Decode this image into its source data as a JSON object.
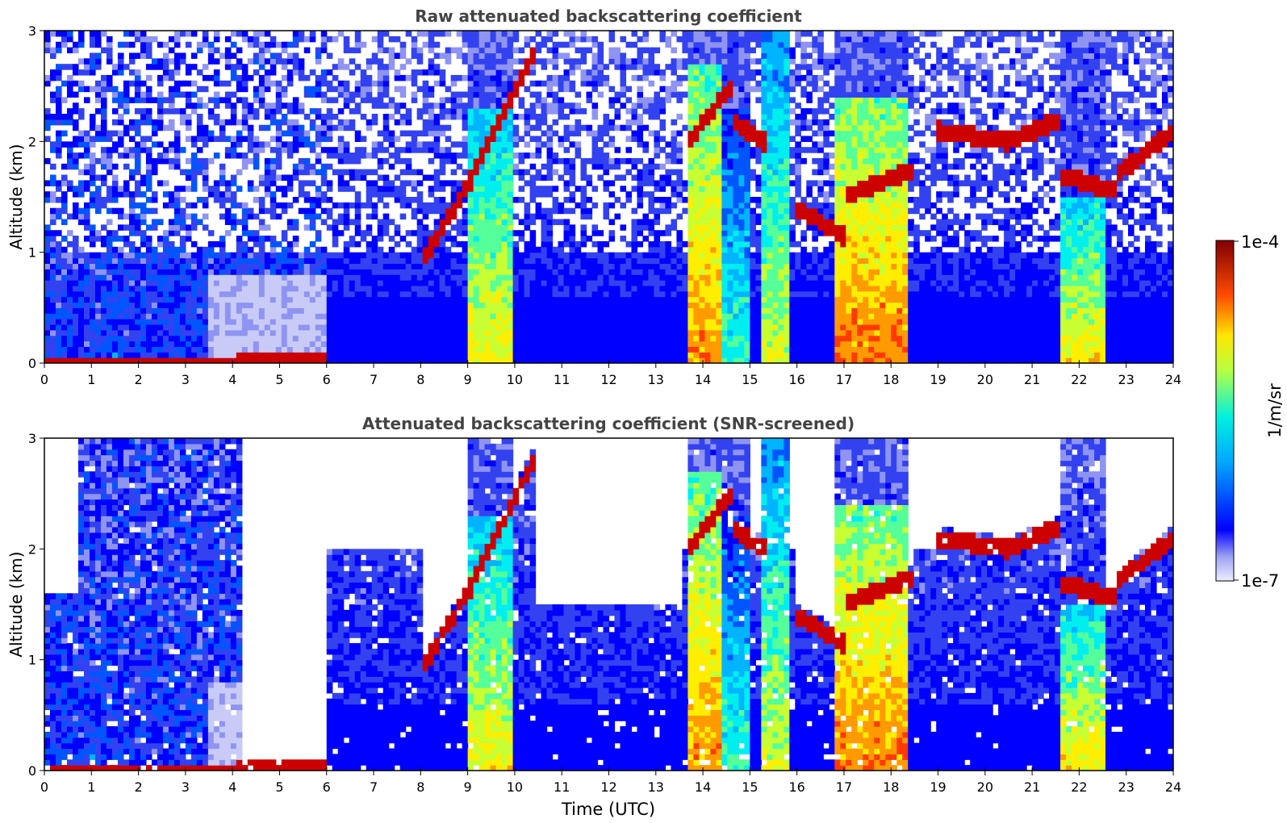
{
  "chart_data": [
    {
      "type": "heatmap",
      "title": "Raw attenuated backscattering coefficient",
      "xlabel": "",
      "ylabel": "Altitude (km)",
      "xlim": [
        0,
        24
      ],
      "ylim": [
        0,
        3
      ],
      "xticks": [
        "0",
        "1",
        "2",
        "3",
        "4",
        "5",
        "6",
        "7",
        "8",
        "9",
        "10",
        "11",
        "12",
        "13",
        "14",
        "15",
        "16",
        "17",
        "18",
        "19",
        "20",
        "21",
        "22",
        "23",
        "24"
      ],
      "yticks": [
        "0",
        "1",
        "2",
        "3"
      ],
      "log_scale_colors": true,
      "boundary_layer": [
        {
          "t0": 0.0,
          "t1": 4.1,
          "top": 0.05,
          "level": 0.95
        },
        {
          "t0": 4.1,
          "t1": 6.0,
          "top": 0.12,
          "level": 0.92
        }
      ],
      "cloud_layers": [
        {
          "t0": 8.0,
          "t1": 9.0,
          "h0": 0.9,
          "h1": 1.6,
          "level": 0.95
        },
        {
          "t0": 9.0,
          "t1": 9.8,
          "h0": 1.6,
          "h1": 2.3,
          "level": 0.95
        },
        {
          "t0": 9.8,
          "t1": 10.4,
          "h0": 2.3,
          "h1": 2.8,
          "level": 0.95
        },
        {
          "t0": 13.7,
          "t1": 14.6,
          "h0": 2.0,
          "h1": 2.5,
          "level": 0.95
        },
        {
          "t0": 14.6,
          "t1": 15.3,
          "h0": 2.2,
          "h1": 2.0,
          "level": 0.95
        },
        {
          "t0": 16.0,
          "t1": 17.0,
          "h0": 1.4,
          "h1": 1.15,
          "level": 0.95
        },
        {
          "t0": 17.0,
          "t1": 18.5,
          "h0": 1.5,
          "h1": 1.75,
          "level": 0.9
        },
        {
          "t0": 19.0,
          "t1": 20.5,
          "h0": 2.1,
          "h1": 2.0,
          "level": 0.95
        },
        {
          "t0": 20.5,
          "t1": 21.6,
          "h0": 2.0,
          "h1": 2.2,
          "level": 0.95
        },
        {
          "t0": 21.6,
          "t1": 22.8,
          "h0": 1.7,
          "h1": 1.55,
          "level": 0.95
        },
        {
          "t0": 22.8,
          "t1": 24.0,
          "h0": 1.7,
          "h1": 2.1,
          "level": 0.95
        }
      ],
      "precipitation_columns": [
        {
          "t0": 9.0,
          "t1": 10.0,
          "top": 2.3,
          "level": 0.7
        },
        {
          "t0": 13.7,
          "t1": 14.4,
          "top": 2.7,
          "level": 0.8
        },
        {
          "t0": 14.4,
          "t1": 15.0,
          "top": 2.3,
          "level": 0.55
        },
        {
          "t0": 15.2,
          "t1": 15.8,
          "top": 3.0,
          "level": 0.65
        },
        {
          "t0": 16.8,
          "t1": 18.4,
          "top": 2.4,
          "level": 0.82
        },
        {
          "t0": 21.6,
          "t1": 22.6,
          "top": 1.5,
          "level": 0.72
        }
      ]
    },
    {
      "type": "heatmap",
      "title": "Attenuated backscattering coefficient (SNR-screened)",
      "xlabel": "Time (UTC)",
      "ylabel": "Altitude (km)",
      "xlim": [
        0,
        24
      ],
      "ylim": [
        0,
        3
      ],
      "xticks": [
        "0",
        "1",
        "2",
        "3",
        "4",
        "5",
        "6",
        "7",
        "8",
        "9",
        "10",
        "11",
        "12",
        "13",
        "14",
        "15",
        "16",
        "17",
        "18",
        "19",
        "20",
        "21",
        "22",
        "23",
        "24"
      ],
      "yticks": [
        "0",
        "1",
        "2",
        "3"
      ],
      "screened_regions": [
        {
          "t0": 0.0,
          "t1": 0.7,
          "top": 1.6
        },
        {
          "t0": 4.2,
          "t1": 6.0,
          "top": 0.1
        },
        {
          "t0": 10.4,
          "t1": 13.6,
          "top": 1.5
        }
      ]
    }
  ],
  "colorbar": {
    "label": "1/m/sr",
    "max_label": "1e-4",
    "min_label": "1e-7",
    "colormap": "jet",
    "colors": [
      "#eeeeff",
      "#c9cbf7",
      "#8f94f2",
      "#3342f0",
      "#0000ff",
      "#0055ff",
      "#00b4ff",
      "#00eeee",
      "#55ff99",
      "#c8ff32",
      "#ffee00",
      "#ff9a00",
      "#ff3a00",
      "#cc0000",
      "#7f0000"
    ]
  }
}
